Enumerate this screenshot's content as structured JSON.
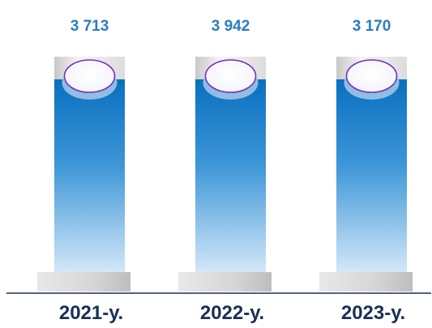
{
  "chart_data": {
    "type": "bar",
    "categories": [
      "2021-у.",
      "2022-у.",
      "2023-у."
    ],
    "values": [
      3713,
      3942,
      3170
    ],
    "value_labels": [
      "3 713",
      "3 942",
      "3 170"
    ],
    "title": "",
    "xlabel": "",
    "ylabel": "",
    "ylim": [
      0,
      4050
    ],
    "grid": false,
    "legend": "none",
    "colors": {
      "bar_top": "#0a6fc0",
      "bar_bottom": "#cfe3f6",
      "tube": "#e6e6e6",
      "value_text": "#2a7dc0",
      "category_text": "#1a2f55",
      "ellipse_stroke": "#7a2fc0",
      "baseline": "#1a2f55"
    }
  }
}
